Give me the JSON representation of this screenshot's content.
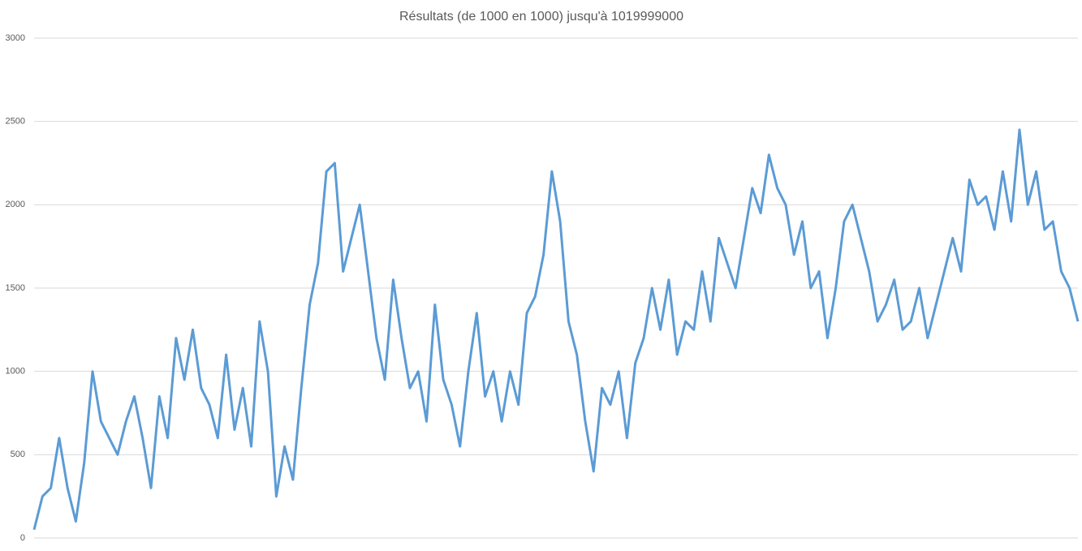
{
  "chart_data": {
    "type": "line",
    "title": "Résultats (de 1000 en 1000) jusqu'à 1019999000",
    "ylim": [
      0,
      3000
    ],
    "yticks": [
      0,
      500,
      1000,
      1500,
      2000,
      2500,
      3000
    ],
    "grid": true,
    "series": [
      {
        "color": "#5b9bd5",
        "values": [
          50,
          250,
          300,
          600,
          300,
          100,
          450,
          1000,
          700,
          600,
          500,
          700,
          850,
          600,
          300,
          850,
          600,
          1200,
          950,
          1250,
          900,
          800,
          600,
          1100,
          650,
          900,
          550,
          1300,
          1000,
          250,
          550,
          350,
          900,
          1400,
          1650,
          2200,
          2250,
          1600,
          1800,
          2000,
          1600,
          1200,
          950,
          1550,
          1200,
          900,
          1000,
          700,
          1400,
          950,
          800,
          550,
          1000,
          1350,
          850,
          1000,
          700,
          1000,
          800,
          1350,
          1450,
          1700,
          2200,
          1900,
          1300,
          1100,
          700,
          400,
          900,
          800,
          1000,
          600,
          1050,
          1200,
          1500,
          1250,
          1550,
          1100,
          1300,
          1250,
          1600,
          1300,
          1800,
          1650,
          1500,
          1800,
          2100,
          1950,
          2300,
          2100,
          2000,
          1700,
          1900,
          1500,
          1600,
          1200,
          1500,
          1900,
          2000,
          1800,
          1600,
          1300,
          1400,
          1550,
          1250,
          1300,
          1500,
          1200,
          1400,
          1600,
          1800,
          1600,
          2150,
          2000,
          2050,
          1850,
          2200,
          1900,
          2450,
          2000,
          2200,
          1850,
          1900,
          1600,
          1500,
          1300
        ]
      }
    ]
  }
}
